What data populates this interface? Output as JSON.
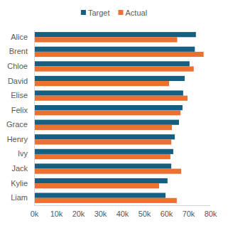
{
  "chart_data": {
    "type": "bar",
    "orientation": "horizontal",
    "grid": false,
    "legend": "top",
    "categories": [
      "Alice",
      "Brent",
      "Chloe",
      "David",
      "Elise",
      "Felix",
      "Grace",
      "Henry",
      "Ivy",
      "Jack",
      "Kylie",
      "Liam"
    ],
    "series": [
      {
        "name": "Target",
        "color": "#156082",
        "values": [
          73500,
          73000,
          70600,
          68400,
          67700,
          67400,
          65800,
          63900,
          63200,
          62300,
          60600,
          59700
        ]
      },
      {
        "name": "Actual",
        "color": "#e97132",
        "values": [
          65000,
          77000,
          72500,
          61300,
          69700,
          66500,
          62600,
          62300,
          61900,
          66800,
          56800,
          64800
        ]
      }
    ],
    "xlim": [
      0,
      80000
    ],
    "xticks": [
      {
        "value": 0,
        "label": "0k"
      },
      {
        "value": 10000,
        "label": "10k"
      },
      {
        "value": 20000,
        "label": "20k"
      },
      {
        "value": 30000,
        "label": "30k"
      },
      {
        "value": 40000,
        "label": "40k"
      },
      {
        "value": 50000,
        "label": "50k"
      },
      {
        "value": 60000,
        "label": "60k"
      },
      {
        "value": 70000,
        "label": "70k"
      },
      {
        "value": 80000,
        "label": "80k"
      }
    ]
  }
}
